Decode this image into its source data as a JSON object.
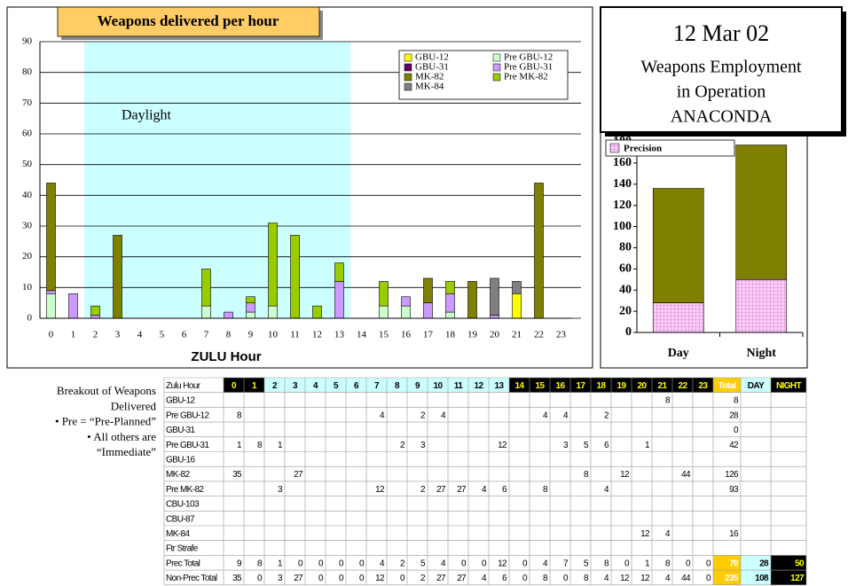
{
  "chart_data": [
    {
      "type": "bar",
      "stacked": true,
      "title": "Weapons delivered per hour",
      "x_label": "ZULU Hour",
      "daylight": {
        "label": "Daylight",
        "from": 2,
        "to": 13
      },
      "categories": [
        0,
        1,
        2,
        3,
        4,
        5,
        6,
        7,
        8,
        9,
        10,
        11,
        12,
        13,
        14,
        15,
        16,
        17,
        18,
        19,
        20,
        21,
        22,
        23
      ],
      "ylim": [
        0,
        90
      ],
      "yticks": [
        0,
        10,
        20,
        30,
        40,
        50,
        60,
        70,
        80,
        90
      ],
      "grid": true,
      "series": [
        {
          "name": "GBU-12",
          "color": "#ffff00",
          "values": [
            0,
            0,
            0,
            0,
            0,
            0,
            0,
            0,
            0,
            0,
            0,
            0,
            0,
            0,
            0,
            0,
            0,
            0,
            0,
            0,
            0,
            8,
            0,
            0
          ]
        },
        {
          "name": "Pre GBU-12",
          "color": "#ccffcc",
          "values": [
            8,
            0,
            0,
            0,
            0,
            0,
            0,
            4,
            0,
            2,
            4,
            0,
            0,
            0,
            0,
            4,
            4,
            0,
            2,
            0,
            0,
            0,
            0,
            0
          ]
        },
        {
          "name": "GBU-31",
          "color": "#660066",
          "values": [
            0,
            0,
            0,
            0,
            0,
            0,
            0,
            0,
            0,
            0,
            0,
            0,
            0,
            0,
            0,
            0,
            0,
            0,
            0,
            0,
            0,
            0,
            0,
            0
          ]
        },
        {
          "name": "Pre GBU-31",
          "color": "#cc99ff",
          "values": [
            1,
            8,
            1,
            0,
            0,
            0,
            0,
            0,
            2,
            3,
            0,
            0,
            0,
            12,
            0,
            0,
            3,
            5,
            6,
            0,
            1,
            0,
            0,
            0
          ]
        },
        {
          "name": "MK-82",
          "color": "#808000",
          "values": [
            35,
            0,
            0,
            27,
            0,
            0,
            0,
            0,
            0,
            0,
            0,
            0,
            0,
            0,
            0,
            0,
            0,
            8,
            0,
            12,
            0,
            0,
            44,
            0
          ]
        },
        {
          "name": "Pre MK-82",
          "color": "#99cc00",
          "values": [
            0,
            0,
            3,
            0,
            0,
            0,
            0,
            12,
            0,
            2,
            27,
            27,
            4,
            6,
            0,
            8,
            0,
            0,
            4,
            0,
            0,
            0,
            0,
            0
          ]
        },
        {
          "name": "MK-84",
          "color": "#808080",
          "values": [
            0,
            0,
            0,
            0,
            0,
            0,
            0,
            0,
            0,
            0,
            0,
            0,
            0,
            0,
            0,
            0,
            0,
            0,
            0,
            0,
            12,
            4,
            0,
            0
          ]
        }
      ]
    },
    {
      "type": "bar",
      "stacked": true,
      "categories": [
        "Day",
        "Night"
      ],
      "ylim": [
        0,
        180
      ],
      "yticks": [
        0,
        20,
        40,
        60,
        80,
        100,
        120,
        140,
        160,
        180
      ],
      "series": [
        {
          "name": "Precision",
          "color": "#ffccff",
          "hatch": true,
          "values": [
            28,
            50
          ]
        },
        {
          "color": "#808000",
          "values": [
            108,
            127
          ]
        }
      ]
    }
  ],
  "title_box": {
    "lines": [
      "12 Mar 02",
      "Weapons Employment",
      "in Operation",
      "ANACONDA"
    ]
  },
  "notes": [
    "Breakout of Weapons",
    "Delivered",
    "• Pre = “Pre-Planned”",
    "• All others are",
    "“Immediate”"
  ],
  "table": {
    "header": [
      "Zulu Hour",
      0,
      1,
      2,
      3,
      4,
      5,
      6,
      7,
      8,
      9,
      10,
      11,
      12,
      13,
      14,
      15,
      16,
      17,
      18,
      19,
      20,
      21,
      22,
      23,
      "Total",
      "DAY",
      "NIGHT"
    ],
    "rows": [
      [
        "GBU-12",
        null,
        null,
        null,
        null,
        null,
        null,
        null,
        null,
        null,
        null,
        null,
        null,
        null,
        null,
        null,
        null,
        null,
        null,
        null,
        null,
        null,
        8,
        null,
        null,
        8,
        null,
        null
      ],
      [
        "Pre GBU-12",
        8,
        null,
        null,
        null,
        null,
        null,
        null,
        4,
        null,
        2,
        4,
        null,
        null,
        null,
        null,
        4,
        4,
        null,
        2,
        null,
        null,
        null,
        null,
        null,
        28,
        null,
        null
      ],
      [
        "GBU-31",
        null,
        null,
        null,
        null,
        null,
        null,
        null,
        null,
        null,
        null,
        null,
        null,
        null,
        null,
        null,
        null,
        null,
        null,
        null,
        null,
        null,
        null,
        null,
        null,
        0,
        null,
        null
      ],
      [
        "Pre GBU-31",
        1,
        8,
        1,
        null,
        null,
        null,
        null,
        null,
        2,
        3,
        null,
        null,
        null,
        12,
        null,
        null,
        3,
        5,
        6,
        null,
        1,
        null,
        null,
        null,
        42,
        null,
        null
      ],
      [
        "GBU-16",
        null,
        null,
        null,
        null,
        null,
        null,
        null,
        null,
        null,
        null,
        null,
        null,
        null,
        null,
        null,
        null,
        null,
        null,
        null,
        null,
        null,
        null,
        null,
        null,
        null,
        null,
        null
      ],
      [
        "MK-82",
        35,
        null,
        null,
        27,
        null,
        null,
        null,
        null,
        null,
        null,
        null,
        null,
        null,
        null,
        null,
        null,
        null,
        8,
        null,
        12,
        null,
        null,
        44,
        null,
        126,
        null,
        null
      ],
      [
        "Pre MK-82",
        null,
        null,
        3,
        null,
        null,
        null,
        null,
        12,
        null,
        2,
        27,
        27,
        4,
        6,
        null,
        8,
        null,
        null,
        4,
        null,
        null,
        null,
        null,
        null,
        93,
        null,
        null
      ],
      [
        "CBU-103",
        null,
        null,
        null,
        null,
        null,
        null,
        null,
        null,
        null,
        null,
        null,
        null,
        null,
        null,
        null,
        null,
        null,
        null,
        null,
        null,
        null,
        null,
        null,
        null,
        null,
        null,
        null
      ],
      [
        "CBU-87",
        null,
        null,
        null,
        null,
        null,
        null,
        null,
        null,
        null,
        null,
        null,
        null,
        null,
        null,
        null,
        null,
        null,
        null,
        null,
        null,
        null,
        null,
        null,
        null,
        null,
        null,
        null
      ],
      [
        "MK-84",
        null,
        null,
        null,
        null,
        null,
        null,
        null,
        null,
        null,
        null,
        null,
        null,
        null,
        null,
        null,
        null,
        null,
        null,
        null,
        null,
        12,
        4,
        null,
        null,
        16,
        null,
        null
      ],
      [
        "Ftr Strafe",
        null,
        null,
        null,
        null,
        null,
        null,
        null,
        null,
        null,
        null,
        null,
        null,
        null,
        null,
        null,
        null,
        null,
        null,
        null,
        null,
        null,
        null,
        null,
        null,
        null,
        null,
        null
      ],
      [
        "Prec Total",
        9,
        8,
        1,
        0,
        0,
        0,
        0,
        4,
        2,
        5,
        4,
        0,
        0,
        12,
        0,
        4,
        7,
        5,
        8,
        0,
        1,
        8,
        0,
        0,
        78,
        28,
        50
      ],
      [
        "Non-Prec Total",
        35,
        0,
        3,
        27,
        0,
        0,
        0,
        12,
        0,
        2,
        27,
        27,
        4,
        6,
        0,
        8,
        0,
        8,
        4,
        12,
        12,
        4,
        44,
        0,
        235,
        108,
        127
      ]
    ]
  }
}
